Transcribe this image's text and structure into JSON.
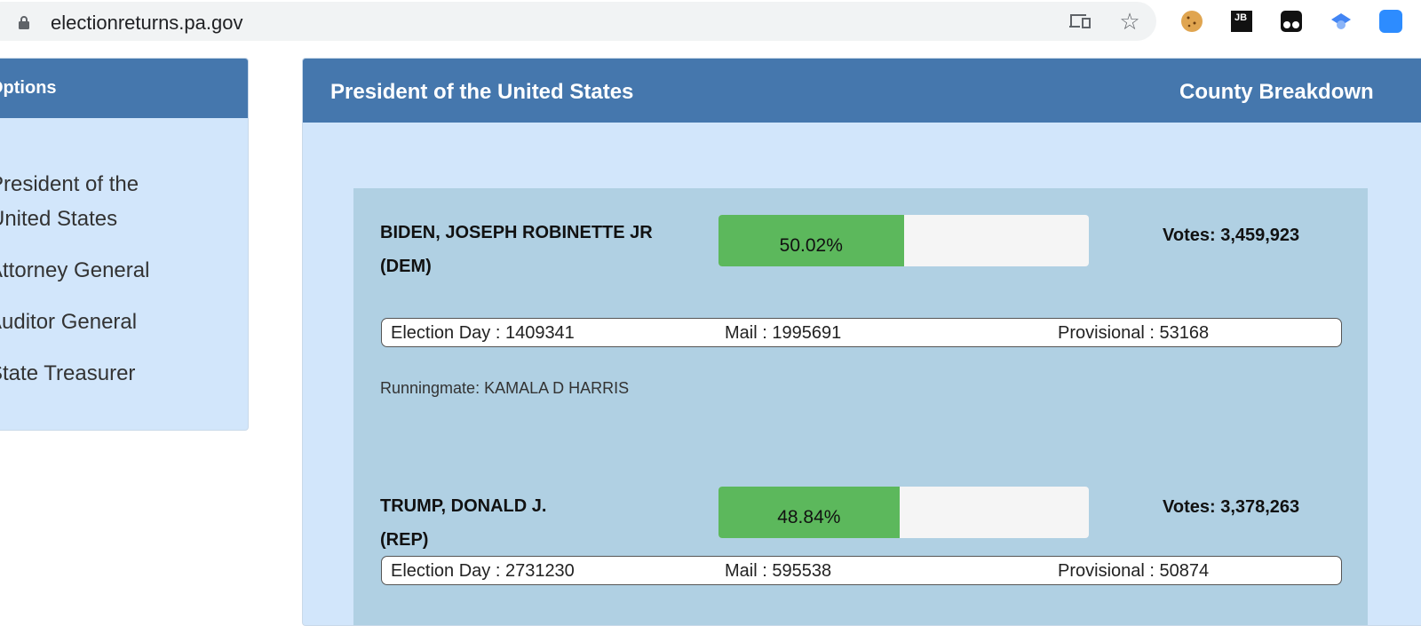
{
  "browser": {
    "url": "electionreturns.pa.gov",
    "icons": [
      "lock-icon",
      "cast-icon",
      "star-icon",
      "cookie-extension-icon",
      "jetbrains-extension-icon",
      "tampermonkey-extension-icon",
      "scholar-extension-icon",
      "zoom-extension-icon"
    ]
  },
  "sidebar": {
    "title": "Options",
    "items": [
      {
        "label": "President of the United States"
      },
      {
        "label": "Attorney General"
      },
      {
        "label": "Auditor General"
      },
      {
        "label": "State Treasurer"
      }
    ]
  },
  "main": {
    "title": "President of the United States",
    "breakdown_label": "County Breakdown",
    "candidates": [
      {
        "name": "BIDEN, JOSEPH ROBINETTE JR",
        "party": "(DEM)",
        "percent": "50.02%",
        "percent_value": 50.02,
        "votes": "Votes: 3,459,923",
        "election_day": "Election Day : 1409341",
        "mail": "Mail : 1995691",
        "provisional": "Provisional : 53168",
        "runningmate": "Runningmate: KAMALA D HARRIS"
      },
      {
        "name": "TRUMP, DONALD J.",
        "party": "(REP)",
        "percent": "48.84%",
        "percent_value": 48.84,
        "votes": "Votes: 3,378,263",
        "election_day": "Election Day : 2731230",
        "mail": "Mail : 595538",
        "provisional": "Provisional : 50874"
      }
    ]
  },
  "colors": {
    "header": "#4577ad",
    "bar_fill": "#5cb85c",
    "panel": "#d2e6fb",
    "box": "#b0d0e3"
  }
}
